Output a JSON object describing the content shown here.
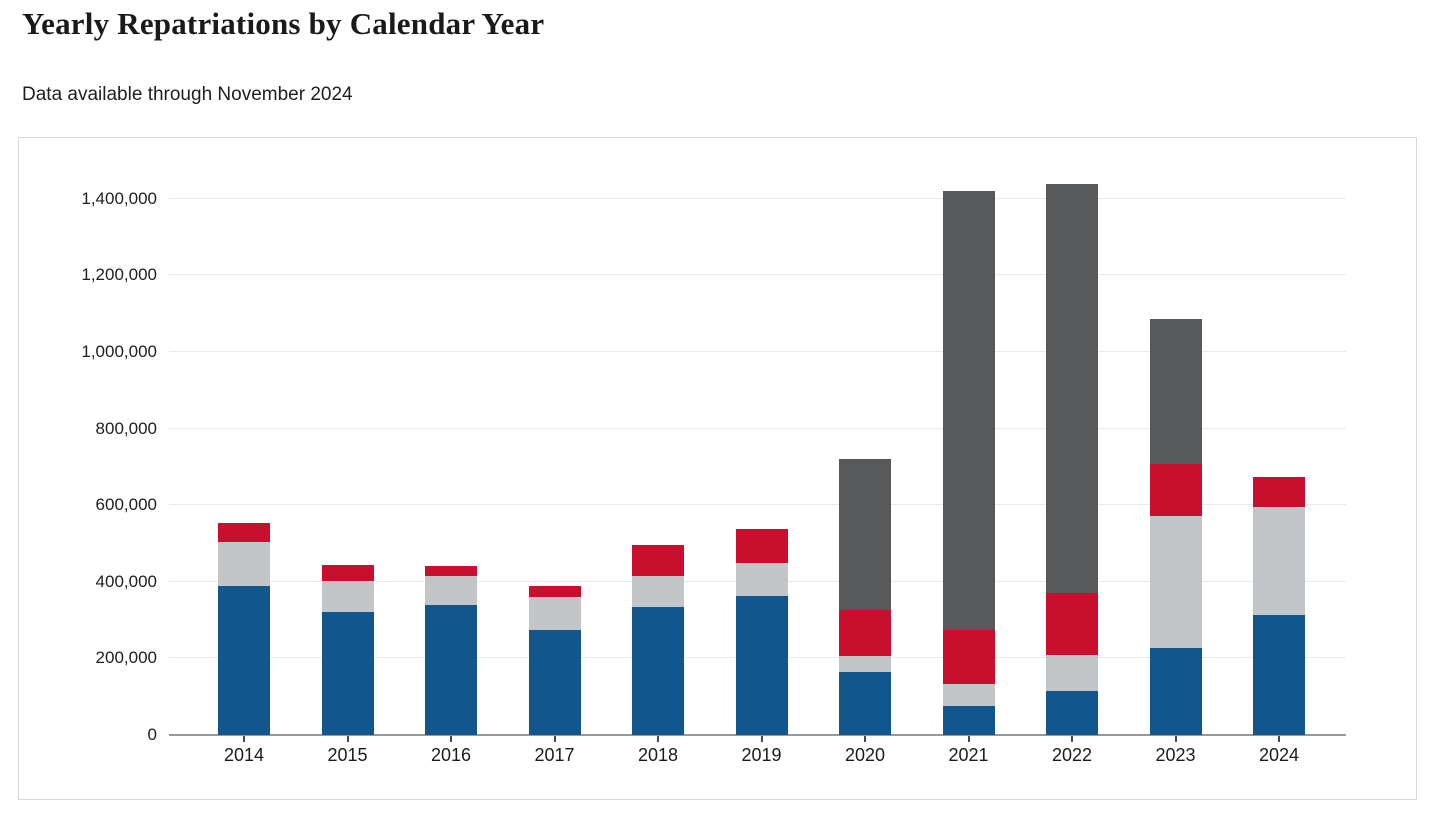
{
  "header": {
    "title": "Yearly Repatriations by Calendar Year",
    "subtitle": "Data available through November 2024"
  },
  "chart_data": {
    "type": "bar",
    "stacked": true,
    "title": "Yearly Repatriations by Calendar Year",
    "subtitle": "Data available through November 2024",
    "categories": [
      "2014",
      "2015",
      "2016",
      "2017",
      "2018",
      "2019",
      "2020",
      "2021",
      "2022",
      "2023",
      "2024"
    ],
    "series": [
      {
        "name": "segment-blue",
        "color": "#11568c",
        "values": [
          390000,
          320000,
          340000,
          273000,
          333000,
          363000,
          165000,
          76000,
          115000,
          227000,
          313000
        ]
      },
      {
        "name": "segment-silver",
        "color": "#c3c6c8",
        "values": [
          113000,
          83000,
          76000,
          87000,
          83000,
          85000,
          41000,
          56000,
          93000,
          346000,
          282000
        ]
      },
      {
        "name": "segment-red",
        "color": "#c8102e",
        "values": [
          50000,
          42000,
          26000,
          28000,
          80000,
          90000,
          120000,
          143000,
          162000,
          135000,
          80000
        ]
      },
      {
        "name": "segment-dark-gray",
        "color": "#58595b",
        "values": [
          0,
          0,
          0,
          0,
          0,
          0,
          394000,
          1145000,
          1070000,
          377000,
          0
        ]
      }
    ],
    "totals": [
      553000,
      445000,
      442000,
      388000,
      496000,
      538000,
      720000,
      1420000,
      1440000,
      1085000,
      675000
    ],
    "xlabel": "",
    "ylabel": "",
    "ylim": [
      0,
      1400000
    ],
    "ytick_step": 200000,
    "ytick_labels": [
      "0",
      "200,000",
      "400,000",
      "600,000",
      "800,000",
      "1,000,000",
      "1,200,000",
      "1,400,000"
    ],
    "grid": true,
    "legend": "none"
  },
  "colors": {
    "gridline": "#e9e9e9",
    "axis": "#999999",
    "tick": "#4a4a4a",
    "border": "#d9d9d9",
    "text": "#1a1a1a"
  }
}
